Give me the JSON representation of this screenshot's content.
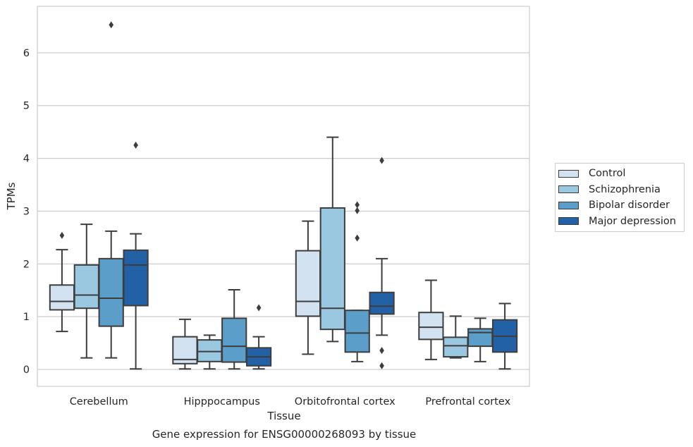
{
  "chart_data": {
    "type": "box",
    "title": "Gene expression for ENSG00000268093 by tissue",
    "xlabel": "Tissue",
    "ylabel": "TPMs",
    "ylim": [
      -0.32,
      6.88
    ],
    "yticks": [
      0,
      1,
      2,
      3,
      4,
      5,
      6
    ],
    "grid": true,
    "legend_position": "right",
    "categories": [
      "Cerebellum",
      "Hipppocampus",
      "Orbitofrontal cortex",
      "Prefrontal cortex"
    ],
    "series": [
      {
        "name": "Control",
        "color": "#d2e2f1",
        "boxes": [
          {
            "whislo": 0.72,
            "q1": 1.13,
            "med": 1.29,
            "q3": 1.6,
            "whishi": 2.27,
            "fliers": [
              2.54
            ]
          },
          {
            "whislo": 0.01,
            "q1": 0.11,
            "med": 0.19,
            "q3": 0.62,
            "whishi": 0.95,
            "fliers": []
          },
          {
            "whislo": 0.29,
            "q1": 1.01,
            "med": 1.29,
            "q3": 2.25,
            "whishi": 2.81,
            "fliers": []
          },
          {
            "whislo": 0.19,
            "q1": 0.57,
            "med": 0.8,
            "q3": 1.08,
            "whishi": 1.69,
            "fliers": []
          }
        ]
      },
      {
        "name": "Schizophrenia",
        "color": "#9ac8e0",
        "boxes": [
          {
            "whislo": 0.22,
            "q1": 1.16,
            "med": 1.41,
            "q3": 1.98,
            "whishi": 2.75,
            "fliers": []
          },
          {
            "whislo": 0.01,
            "q1": 0.15,
            "med": 0.34,
            "q3": 0.56,
            "whishi": 0.65,
            "fliers": []
          },
          {
            "whislo": 0.53,
            "q1": 0.76,
            "med": 1.16,
            "q3": 3.06,
            "whishi": 4.4,
            "fliers": []
          },
          {
            "whislo": 0.22,
            "q1": 0.24,
            "med": 0.45,
            "q3": 0.61,
            "whishi": 1.01,
            "fliers": []
          }
        ]
      },
      {
        "name": "Bipolar disorder",
        "color": "#5a9ec9",
        "boxes": [
          {
            "whislo": 0.22,
            "q1": 0.82,
            "med": 1.35,
            "q3": 2.1,
            "whishi": 2.62,
            "fliers": [
              6.53
            ]
          },
          {
            "whislo": 0.01,
            "q1": 0.14,
            "med": 0.44,
            "q3": 0.97,
            "whishi": 1.51,
            "fliers": []
          },
          {
            "whislo": 0.15,
            "q1": 0.33,
            "med": 0.69,
            "q3": 1.12,
            "whishi": 1.12,
            "fliers": [
              2.49,
              3.01,
              3.12
            ]
          },
          {
            "whislo": 0.15,
            "q1": 0.44,
            "med": 0.7,
            "q3": 0.77,
            "whishi": 0.97,
            "fliers": []
          }
        ]
      },
      {
        "name": "Major depression",
        "color": "#2261a5",
        "boxes": [
          {
            "whislo": 0.01,
            "q1": 1.21,
            "med": 1.98,
            "q3": 2.26,
            "whishi": 2.57,
            "fliers": [
              4.25
            ]
          },
          {
            "whislo": 0.01,
            "q1": 0.07,
            "med": 0.24,
            "q3": 0.41,
            "whishi": 0.62,
            "fliers": [
              1.17
            ]
          },
          {
            "whislo": 0.65,
            "q1": 1.05,
            "med": 1.2,
            "q3": 1.46,
            "whishi": 2.1,
            "fliers": [
              0.07,
              0.36,
              3.96
            ]
          },
          {
            "whislo": 0.01,
            "q1": 0.33,
            "med": 0.63,
            "q3": 0.94,
            "whishi": 1.25,
            "fliers": []
          }
        ]
      }
    ]
  }
}
